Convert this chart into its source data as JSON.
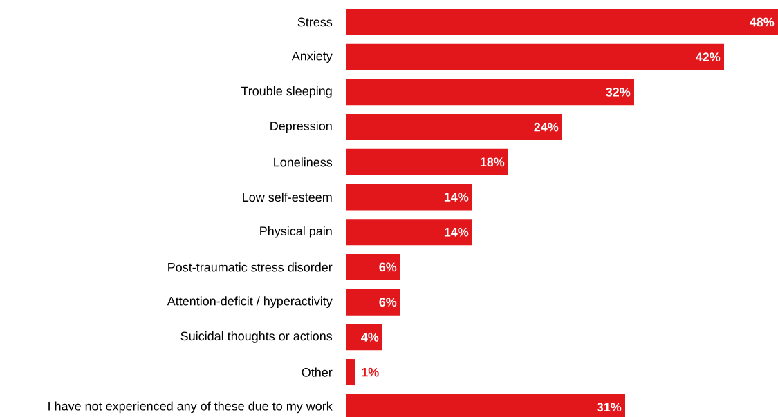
{
  "chart_data": {
    "type": "bar",
    "orientation": "horizontal",
    "color": "#e1171c",
    "categories": [
      "Stress",
      "Anxiety",
      "Trouble sleeping",
      "Depression",
      "Loneliness",
      "Low self-esteem",
      "Physical pain",
      "Post-traumatic stress disorder",
      "Attention-deficit / hyperactivity",
      "Suicidal thoughts or actions",
      "Other",
      "I have not experienced any of these due to my work"
    ],
    "values": [
      48,
      42,
      32,
      24,
      18,
      14,
      14,
      6,
      6,
      4,
      1,
      31
    ],
    "value_labels": [
      "48%",
      "42%",
      "32%",
      "24%",
      "18%",
      "14%",
      "14%",
      "6%",
      "6%",
      "4%",
      "1%",
      "31%"
    ]
  }
}
